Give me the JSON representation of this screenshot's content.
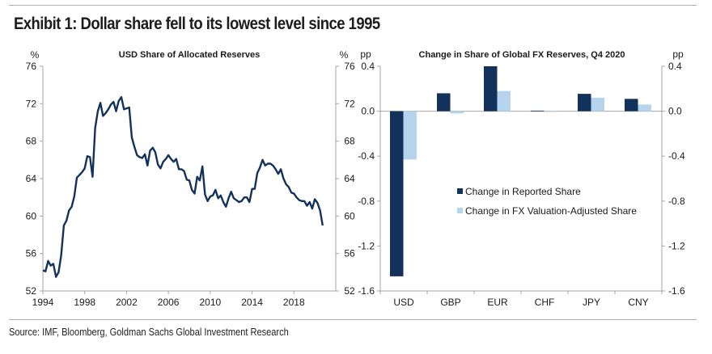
{
  "exhibit_title": "Exhibit 1: Dollar share fell to its lowest level since 1995",
  "source": "Source: IMF, Bloomberg, Goldman Sachs Global Investment Research",
  "colors": {
    "line": "#13325b",
    "reported": "#13325b",
    "adjusted": "#b6d4ee",
    "axis": "#a6a6a6"
  },
  "chart_data": [
    {
      "type": "line",
      "title": "USD Share of Allocated Reserves",
      "ylabel_left": "%",
      "ylabel_right": "%",
      "ylim": [
        52,
        76
      ],
      "yticks": [
        "76",
        "72",
        "68",
        "64",
        "60",
        "56",
        "52"
      ],
      "ytick_values": [
        76,
        72,
        68,
        64,
        60,
        56,
        52
      ],
      "xlim": [
        1994,
        2022
      ],
      "xticks": [
        "1994",
        "1998",
        "2002",
        "2006",
        "2010",
        "2014",
        "2018"
      ],
      "xtick_values": [
        1994,
        1998,
        2002,
        2006,
        2010,
        2014,
        2018
      ],
      "series": [
        {
          "name": "USD share",
          "x": [
            1994.0,
            1994.25,
            1994.5,
            1994.75,
            1995.0,
            1995.25,
            1995.5,
            1995.75,
            1996.0,
            1996.25,
            1996.5,
            1996.75,
            1997.0,
            1997.25,
            1997.5,
            1997.75,
            1998.0,
            1998.25,
            1998.5,
            1998.75,
            1999.0,
            1999.25,
            1999.5,
            1999.75,
            2000.0,
            2000.25,
            2000.5,
            2000.75,
            2001.0,
            2001.25,
            2001.5,
            2001.75,
            2002.0,
            2002.25,
            2002.5,
            2002.75,
            2003.0,
            2003.25,
            2003.5,
            2003.75,
            2004.0,
            2004.25,
            2004.5,
            2004.75,
            2005.0,
            2005.25,
            2005.5,
            2005.75,
            2006.0,
            2006.25,
            2006.5,
            2006.75,
            2007.0,
            2007.25,
            2007.5,
            2007.75,
            2008.0,
            2008.25,
            2008.5,
            2008.75,
            2009.0,
            2009.25,
            2009.5,
            2009.75,
            2010.0,
            2010.25,
            2010.5,
            2010.75,
            2011.0,
            2011.25,
            2011.5,
            2011.75,
            2012.0,
            2012.25,
            2012.5,
            2012.75,
            2013.0,
            2013.25,
            2013.5,
            2013.75,
            2014.0,
            2014.25,
            2014.5,
            2014.75,
            2015.0,
            2015.25,
            2015.5,
            2015.75,
            2016.0,
            2016.25,
            2016.5,
            2016.75,
            2017.0,
            2017.25,
            2017.5,
            2017.75,
            2018.0,
            2018.25,
            2018.5,
            2018.75,
            2019.0,
            2019.25,
            2019.5,
            2019.75,
            2020.0,
            2020.25,
            2020.5,
            2020.75
          ],
          "values": [
            54.2,
            54.1,
            55.2,
            54.7,
            54.9,
            53.5,
            54.0,
            55.8,
            59.0,
            59.5,
            60.6,
            61.0,
            62.1,
            64.1,
            64.4,
            64.7,
            65.1,
            66.4,
            66.3,
            64.2,
            69.4,
            71.2,
            72.1,
            70.7,
            71.0,
            71.4,
            71.9,
            72.2,
            71.2,
            72.3,
            72.7,
            71.4,
            71.5,
            71.6,
            68.4,
            67.4,
            66.5,
            66.3,
            66.2,
            66.6,
            65.4,
            67.0,
            67.3,
            66.8,
            65.5,
            65.1,
            65.8,
            66.1,
            66.5,
            66.1,
            65.8,
            66.1,
            65.0,
            65.0,
            64.8,
            63.9,
            63.8,
            62.8,
            62.4,
            64.2,
            63.8,
            65.3,
            62.3,
            61.6,
            62.1,
            62.2,
            62.8,
            61.9,
            62.2,
            61.5,
            61.0,
            61.9,
            62.6,
            61.9,
            61.7,
            61.5,
            61.6,
            62.0,
            62.0,
            61.5,
            62.9,
            62.9,
            64.6,
            65.2,
            66.0,
            65.4,
            65.6,
            65.6,
            65.4,
            65.0,
            64.5,
            65.0,
            64.0,
            63.4,
            63.1,
            62.5,
            62.4,
            62.0,
            61.7,
            61.6,
            61.6,
            61.1,
            61.5,
            60.8,
            61.8,
            61.4,
            60.6,
            59.0
          ]
        }
      ]
    },
    {
      "type": "bar",
      "title": "Change in Share of Global FX Reserves, Q4 2020",
      "ylabel_left": "pp",
      "ylabel_right": "pp",
      "ylim": [
        -1.6,
        0.4
      ],
      "yticks": [
        "0.4",
        "0.0",
        "-0.4",
        "-0.8",
        "-1.2",
        "-1.6"
      ],
      "ytick_values": [
        0.4,
        0.0,
        -0.4,
        -0.8,
        -1.2,
        -1.6
      ],
      "categories": [
        "USD",
        "GBP",
        "EUR",
        "CHF",
        "JPY",
        "CNY"
      ],
      "legend_position": "center",
      "series": [
        {
          "name": "Change in Reported Share",
          "values": [
            -1.47,
            0.16,
            0.4,
            0.005,
            0.155,
            0.11
          ]
        },
        {
          "name": "Change in FX Valuation-Adjusted Share",
          "values": [
            -0.43,
            -0.02,
            0.18,
            0.0,
            0.12,
            0.06
          ]
        }
      ]
    }
  ]
}
